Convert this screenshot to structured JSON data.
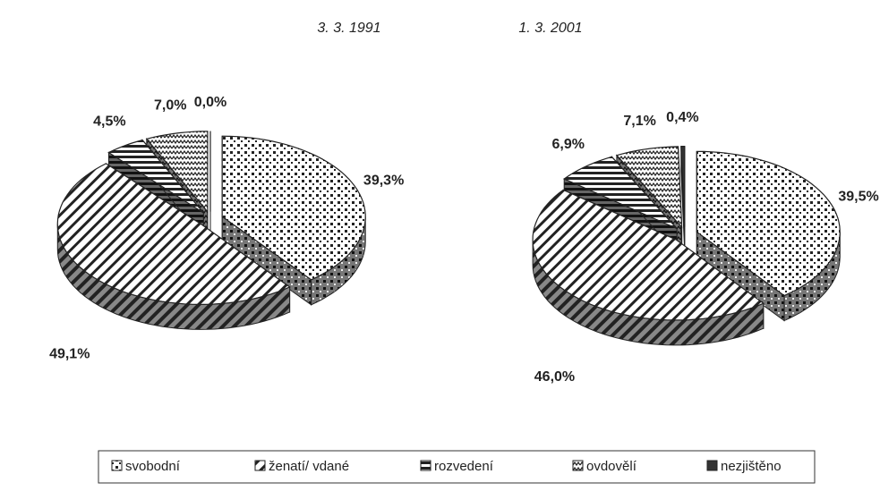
{
  "chart_data": {
    "type": "pie",
    "categories": [
      "svobodní",
      "ženatí/ vdané",
      "rozvedení",
      "ovdovělí",
      "nezjištěno"
    ],
    "series": [
      {
        "name": "3. 3. 1991",
        "values": [
          39.3,
          49.1,
          4.5,
          7.0,
          0.0
        ],
        "value_labels": [
          "39,3%",
          "49,1%",
          "4,5%",
          "7,0%",
          "0,0%"
        ]
      },
      {
        "name": "1. 3. 2001",
        "values": [
          39.5,
          46.0,
          6.9,
          7.1,
          0.4
        ],
        "value_labels": [
          "39,5%",
          "46,0%",
          "6,9%",
          "7,1%",
          "0,4%"
        ]
      }
    ]
  }
}
